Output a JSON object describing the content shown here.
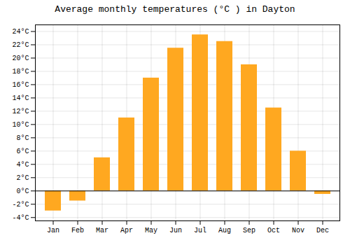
{
  "chart_data": {
    "type": "bar",
    "title": "Average monthly temperatures (°C ) in Dayton",
    "categories": [
      "Jan",
      "Feb",
      "Mar",
      "Apr",
      "May",
      "Jun",
      "Jul",
      "Aug",
      "Sep",
      "Oct",
      "Nov",
      "Dec"
    ],
    "values": [
      -3.0,
      -1.5,
      5.0,
      11.0,
      17.0,
      21.5,
      23.5,
      22.5,
      19.0,
      12.5,
      6.0,
      -0.5
    ],
    "color": "#FFA820",
    "ylim": [
      -4.5,
      25
    ],
    "yticks": [
      {
        "value": -4,
        "label": "-4°C"
      },
      {
        "value": -2,
        "label": "-2°C"
      },
      {
        "value": 0,
        "label": "0°C"
      },
      {
        "value": 2,
        "label": "2°C"
      },
      {
        "value": 4,
        "label": "4°C"
      },
      {
        "value": 6,
        "label": "6°C"
      },
      {
        "value": 8,
        "label": "8°C"
      },
      {
        "value": 10,
        "label": "10°C"
      },
      {
        "value": 12,
        "label": "12°C"
      },
      {
        "value": 14,
        "label": "14°C"
      },
      {
        "value": 16,
        "label": "16°C"
      },
      {
        "value": 18,
        "label": "18°C"
      },
      {
        "value": 20,
        "label": "20°C"
      },
      {
        "value": 22,
        "label": "22°C"
      },
      {
        "value": 24,
        "label": "24°C"
      }
    ],
    "grid": true
  }
}
